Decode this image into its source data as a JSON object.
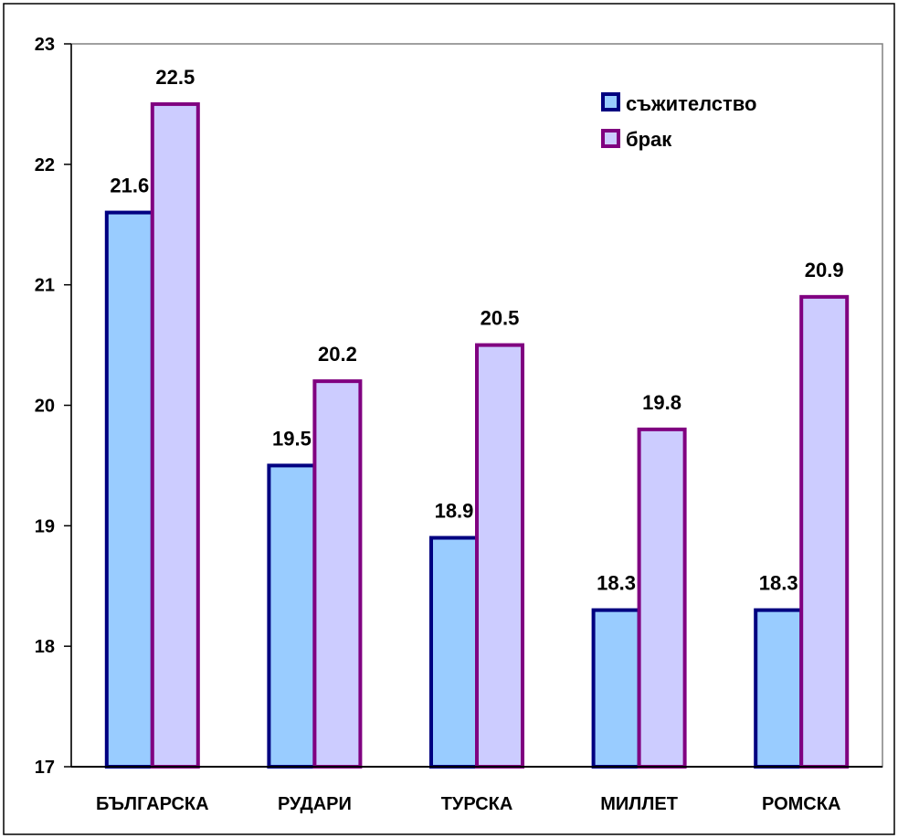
{
  "chart_data": {
    "type": "bar",
    "categories": [
      "БЪЛГАРСКА",
      "РУДАРИ",
      "ТУРСКА",
      "МИЛЛЕТ",
      "РОМСКА"
    ],
    "series": [
      {
        "name": "съжителство",
        "values": [
          21.6,
          19.5,
          18.9,
          18.3,
          18.3
        ],
        "labels": [
          "21.6",
          "19.5",
          "18.9",
          "18.3",
          "18.3"
        ],
        "fill": "#99ccff",
        "stroke": "#000080"
      },
      {
        "name": "брак",
        "values": [
          22.5,
          20.2,
          20.5,
          19.8,
          20.9
        ],
        "labels": [
          "22.5",
          "20.2",
          "20.5",
          "19.8",
          "20.9"
        ],
        "fill": "#ccccff",
        "stroke": "#800080"
      }
    ],
    "ylim": [
      17,
      23
    ],
    "yticks": [
      "17",
      "18",
      "19",
      "20",
      "21",
      "22",
      "23"
    ],
    "grid": false,
    "legend": "top-right"
  }
}
